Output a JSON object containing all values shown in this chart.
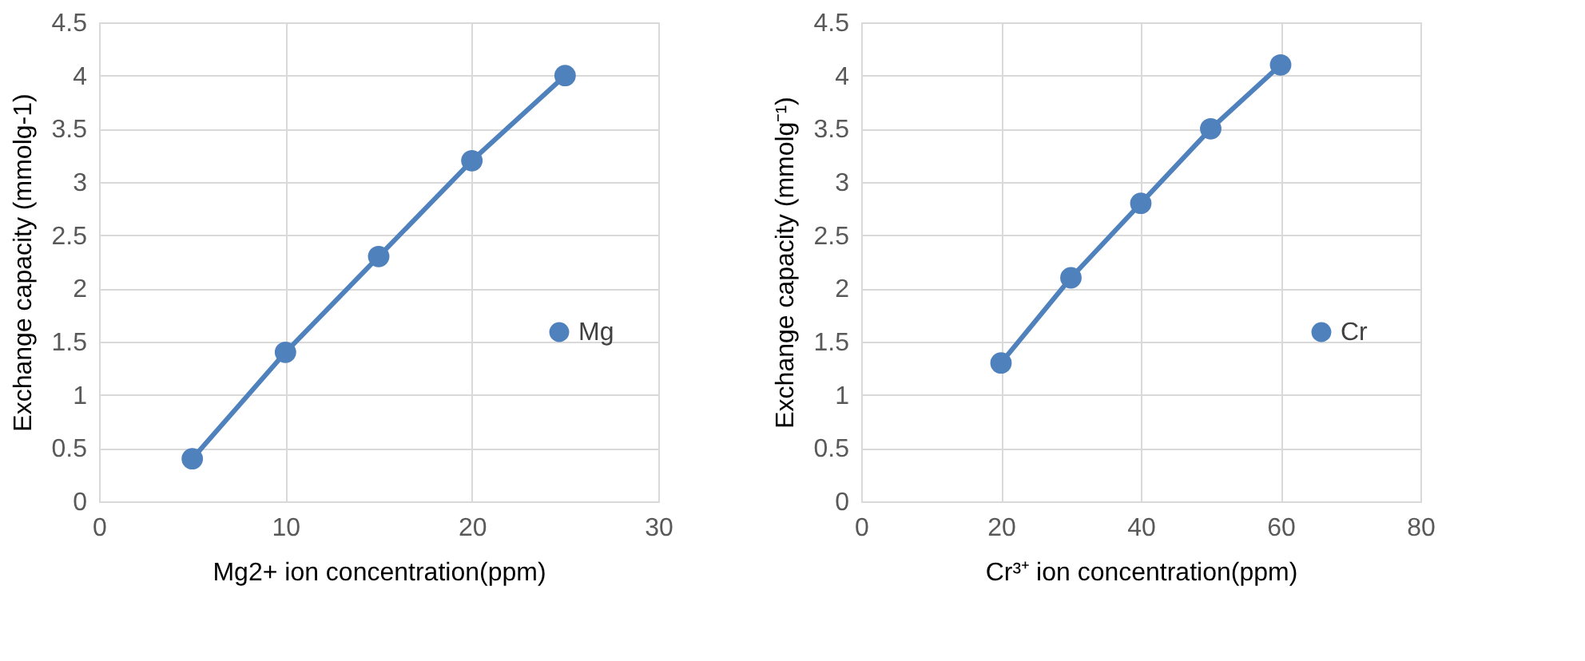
{
  "chart_data": [
    {
      "type": "line",
      "xlabel": "Mg2+ ion concentration(ppm)",
      "ylabel": "Exchange capacity (mmolg-1)",
      "x": [
        5,
        10,
        15,
        20,
        25
      ],
      "series": [
        {
          "name": "Mg",
          "color": "#4f81bd",
          "values": [
            0.4,
            1.4,
            2.3,
            3.2,
            4.0
          ]
        }
      ],
      "xlim": [
        0,
        30
      ],
      "xticks": [
        0,
        10,
        20,
        30
      ],
      "ylim": [
        0,
        4.5
      ],
      "yticks": [
        0,
        0.5,
        1,
        1.5,
        2,
        2.5,
        3,
        3.5,
        4,
        4.5
      ],
      "grid": true,
      "legend": "right",
      "marker": "circle",
      "line_style": "solid"
    },
    {
      "type": "line",
      "xlabel": "Cr³⁺ ion concentration(ppm)",
      "ylabel": "Exchange capacity (mmolg⁻¹)",
      "x": [
        20,
        30,
        40,
        50,
        60
      ],
      "series": [
        {
          "name": "Cr",
          "color": "#4f81bd",
          "values": [
            1.3,
            2.1,
            2.8,
            3.5,
            4.1
          ]
        }
      ],
      "xlim": [
        0,
        80
      ],
      "xticks": [
        0,
        20,
        40,
        60,
        80
      ],
      "ylim": [
        0,
        4.5
      ],
      "yticks": [
        0,
        0.5,
        1,
        1.5,
        2,
        2.5,
        3,
        3.5,
        4,
        4.5
      ],
      "grid": true,
      "legend": "right",
      "marker": "circle",
      "line_style": "solid"
    }
  ]
}
